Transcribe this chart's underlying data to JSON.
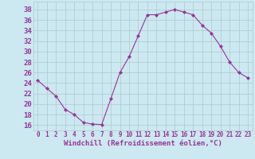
{
  "x": [
    0,
    1,
    2,
    3,
    4,
    5,
    6,
    7,
    8,
    9,
    10,
    11,
    12,
    13,
    14,
    15,
    16,
    17,
    18,
    19,
    20,
    21,
    22,
    23
  ],
  "y": [
    24.5,
    23,
    21.5,
    19,
    18,
    16.5,
    16.2,
    16.1,
    21,
    26,
    29,
    33,
    37,
    37,
    37.5,
    38,
    37.5,
    37,
    35,
    33.5,
    31,
    28,
    26,
    25
  ],
  "line_color": "#993399",
  "marker": "D",
  "marker_size": 2.0,
  "bg_color": "#cce8f0",
  "grid_color": "#aacccc",
  "xlabel": "Windchill (Refroidissement éolien,°C)",
  "xlabel_color": "#993399",
  "xlabel_fontsize": 6.5,
  "ylabel_ticks": [
    16,
    18,
    20,
    22,
    24,
    26,
    28,
    30,
    32,
    34,
    36,
    38
  ],
  "ytick_fontsize": 6.5,
  "xtick_fontsize": 5.5,
  "ylim": [
    15.0,
    39.5
  ],
  "xlim": [
    -0.5,
    23.5
  ],
  "tick_color": "#993399",
  "spine_color": "#aaaaaa"
}
